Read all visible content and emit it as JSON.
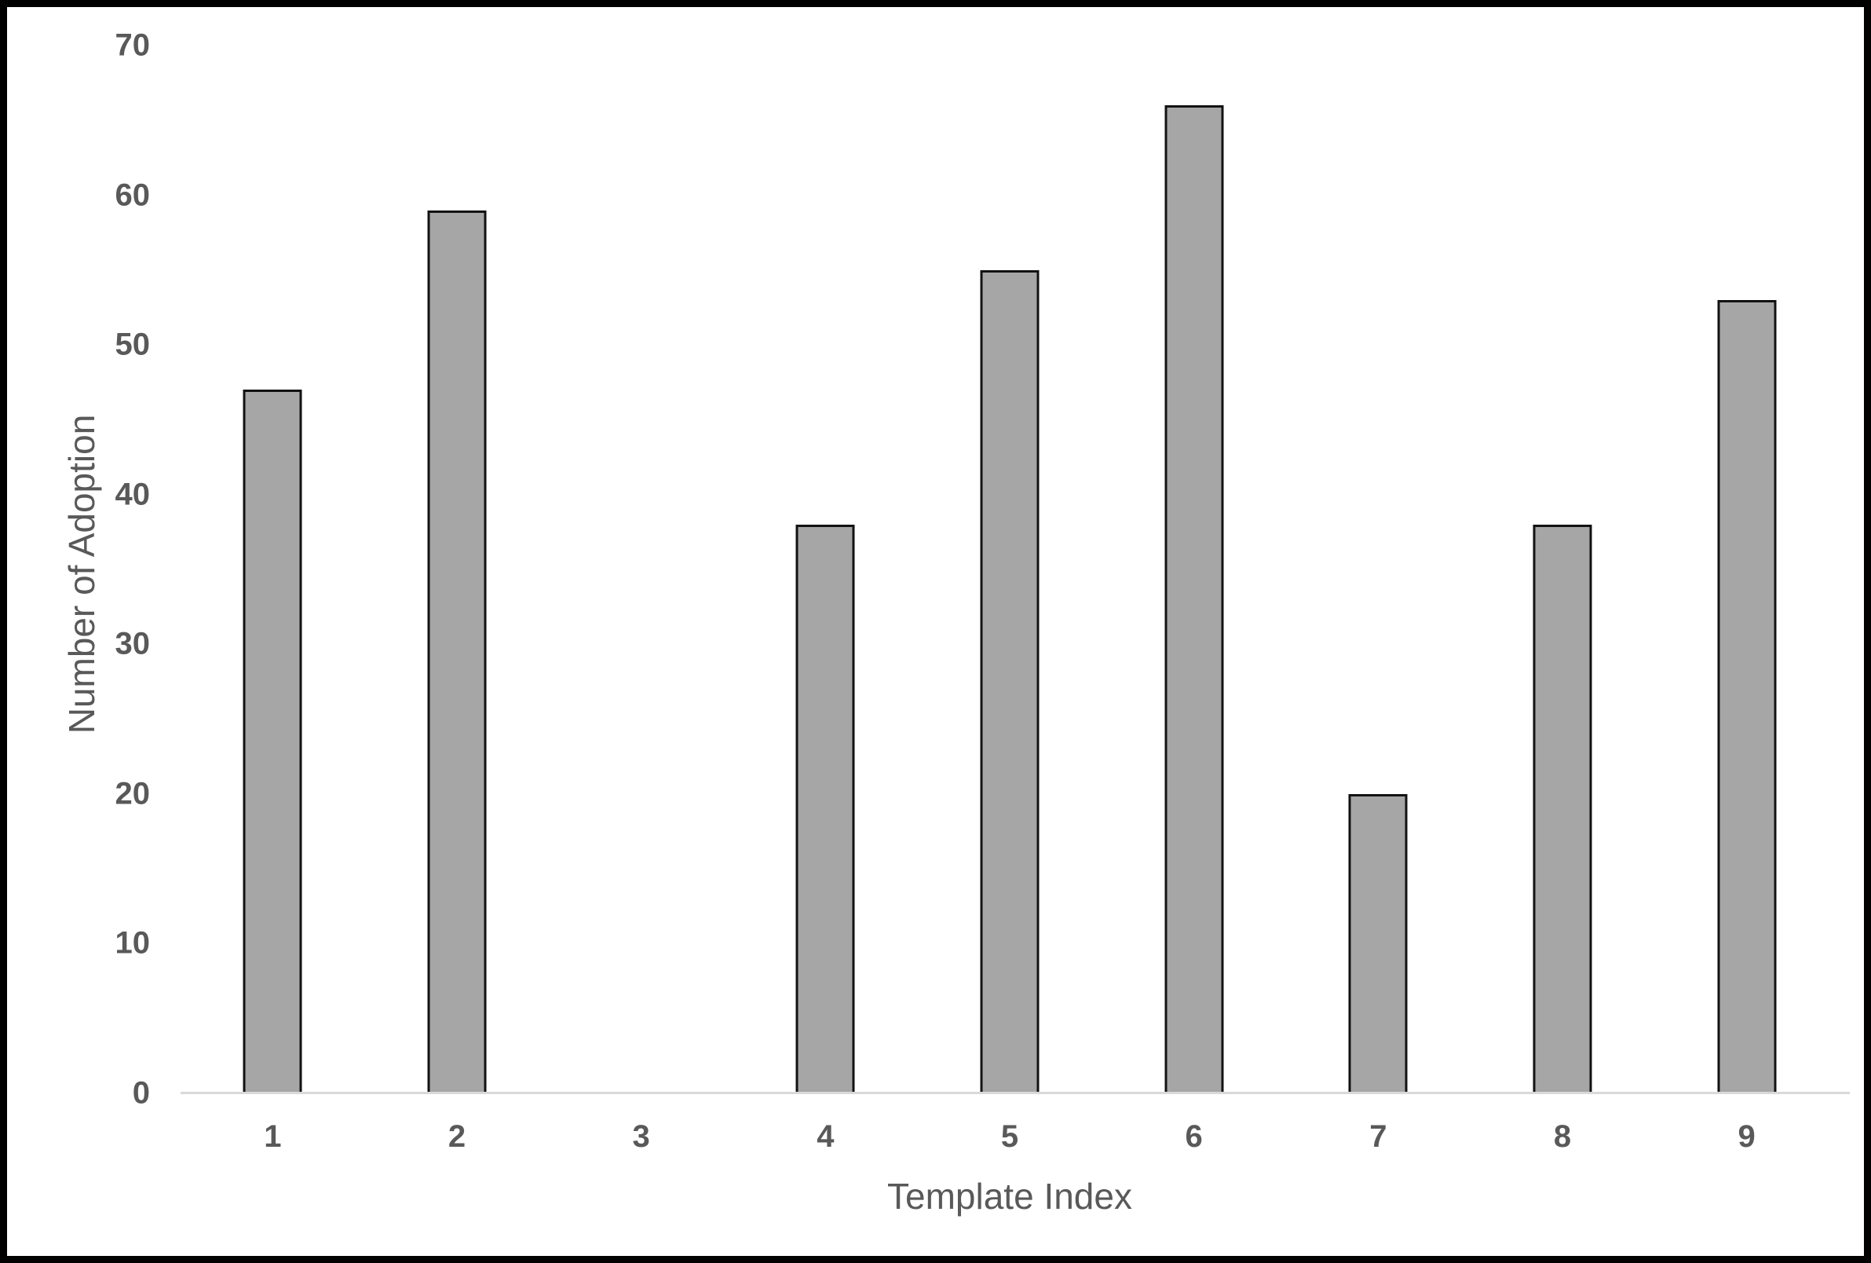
{
  "chart_data": {
    "type": "bar",
    "title": "",
    "categories": [
      "1",
      "2",
      "3",
      "4",
      "5",
      "6",
      "7",
      "8",
      "9"
    ],
    "values": [
      47,
      59,
      0,
      38,
      55,
      66,
      20,
      38,
      53
    ],
    "xlabel": "Template Index",
    "ylabel": "Number of Adoption",
    "ylim": [
      0,
      70
    ],
    "yticks": [
      0,
      10,
      20,
      30,
      40,
      50,
      60,
      70
    ],
    "grid": false,
    "legend_position": "none",
    "colors": {
      "bar_fill": "#a6a6a6",
      "bar_border": "#121212",
      "axis_text": "#595959",
      "axis_line": "#d9d9d9",
      "frame": "#000000",
      "background": "#ffffff"
    }
  }
}
